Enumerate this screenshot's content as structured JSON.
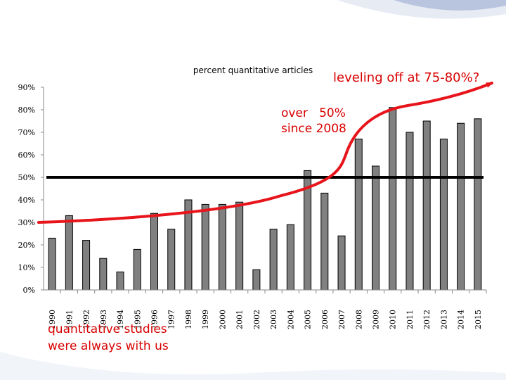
{
  "chart_data": {
    "type": "bar",
    "title": "percent quantitative articles",
    "categories": [
      "1990",
      "1991",
      "1992",
      "1993",
      "1994",
      "1995",
      "1996",
      "1997",
      "1998",
      "1999",
      "2000",
      "2001",
      "2002",
      "2003",
      "2004",
      "2005",
      "2006",
      "2007",
      "2008",
      "2009",
      "2010",
      "2011",
      "2012",
      "2013",
      "2014",
      "2015"
    ],
    "values": [
      23,
      33,
      22,
      14,
      8,
      18,
      34,
      27,
      40,
      38,
      38,
      39,
      9,
      27,
      29,
      53,
      43,
      24,
      67,
      55,
      81,
      70,
      75,
      67,
      74,
      76
    ],
    "y_ticks": [
      "0%",
      "10%",
      "20%",
      "30%",
      "40%",
      "50%",
      "60%",
      "70%",
      "80%",
      "90%"
    ],
    "ylim": [
      0,
      90
    ],
    "grid": false,
    "reference_line": {
      "value": 50,
      "color": "#000000"
    },
    "trend_curve_color": "#e8141b",
    "bar_fill": "#808080",
    "bar_stroke": "#000000"
  },
  "annotations": {
    "leveling": "leveling off at 75-80%?",
    "over_line1": "over   50%",
    "over_line2": "since 2008",
    "quant_line1": "quantitative studies",
    "quant_line2": "were always with us"
  },
  "colors": {
    "annotation": "#d80000",
    "accent": "#2f4f9a"
  }
}
